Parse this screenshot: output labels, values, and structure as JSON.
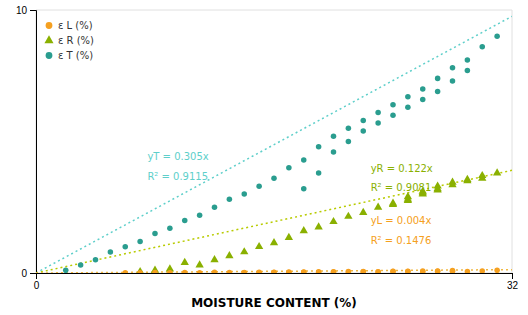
{
  "chart_data": {
    "type": "scatter",
    "xlabel": "MOISTURE CONTENT (%)",
    "xlim": [
      0,
      32
    ],
    "ylim": [
      0,
      10
    ],
    "xticks": [
      0,
      32
    ],
    "yticks": [
      0,
      10
    ],
    "grid": true,
    "legend": "upper left",
    "series": [
      {
        "name": "ε L (%)",
        "type": "scatter",
        "color": "#f5a020",
        "marker": "circle",
        "x": [
          6,
          7,
          8,
          9,
          10,
          11,
          12,
          13,
          14,
          15,
          16,
          17,
          18,
          19,
          20,
          21,
          22,
          23,
          24,
          25,
          26,
          27,
          28,
          29,
          30,
          31,
          14,
          15,
          16,
          17,
          18,
          19,
          20,
          21,
          22,
          23,
          24,
          25,
          26,
          27,
          28
        ],
        "values": [
          0.01,
          0.01,
          0.02,
          0.01,
          0.02,
          0.01,
          0.03,
          0.02,
          0.01,
          0.03,
          0.02,
          0.04,
          0.03,
          0.05,
          0.04,
          0.06,
          0.05,
          0.04,
          0.06,
          0.07,
          0.05,
          0.08,
          0.07,
          0.06,
          0.08,
          0.1,
          0.02,
          0.01,
          0.03,
          0.02,
          0.04,
          0.03,
          0.05,
          0.04,
          0.06,
          0.05,
          0.07,
          0.06,
          0.08,
          0.07,
          0.09
        ]
      },
      {
        "name": "ε R (%)",
        "type": "scatter",
        "color": "#8ab000",
        "marker": "triangle",
        "x": [
          7,
          8,
          9,
          10,
          11,
          12,
          13,
          14,
          15,
          16,
          17,
          18,
          19,
          20,
          21,
          22,
          23,
          24,
          25,
          26,
          27,
          28,
          29,
          30,
          31,
          24,
          25,
          26,
          27,
          28,
          29,
          30,
          25,
          26,
          27
        ],
        "values": [
          0.05,
          0.1,
          0.15,
          0.4,
          0.3,
          0.5,
          0.65,
          0.8,
          1.0,
          1.15,
          1.35,
          1.6,
          1.75,
          1.95,
          2.15,
          2.3,
          2.5,
          2.65,
          2.8,
          3.0,
          3.15,
          3.35,
          3.5,
          3.6,
          3.8,
          2.6,
          2.75,
          3.1,
          3.2,
          3.45,
          3.55,
          3.7,
          2.9,
          3.05,
          3.3
        ]
      },
      {
        "name": "ε T (%)",
        "type": "scatter",
        "color": "#2a9d8f",
        "marker": "circle",
        "x": [
          2,
          3,
          4,
          5,
          6,
          7,
          8,
          9,
          10,
          11,
          12,
          13,
          14,
          15,
          16,
          17,
          18,
          19,
          20,
          21,
          22,
          23,
          24,
          25,
          26,
          27,
          28,
          29,
          30,
          31,
          18,
          19,
          20,
          21,
          22,
          23,
          24,
          25,
          26,
          27,
          28,
          29
        ],
        "values": [
          0.1,
          0.3,
          0.5,
          0.8,
          1.0,
          1.2,
          1.5,
          1.7,
          2.0,
          2.2,
          2.5,
          2.8,
          3.0,
          3.3,
          3.6,
          4.0,
          4.3,
          4.8,
          5.2,
          5.5,
          5.8,
          6.1,
          6.4,
          6.7,
          7.0,
          7.4,
          7.8,
          8.1,
          8.6,
          9.0,
          3.2,
          3.8,
          4.6,
          5.0,
          5.4,
          5.7,
          6.0,
          6.3,
          6.6,
          6.9,
          7.3,
          7.7
        ]
      },
      {
        "type": "line",
        "color": "#5ecfca",
        "line_style": "dotted",
        "x": [
          0,
          32
        ],
        "values": [
          0,
          9.76
        ]
      },
      {
        "type": "line",
        "color": "#b8cb00",
        "line_style": "dotted",
        "x": [
          0,
          32
        ],
        "values": [
          0,
          3.904
        ]
      },
      {
        "type": "line",
        "color": "#f0b840",
        "line_style": "dotted",
        "x": [
          0,
          32
        ],
        "values": [
          0,
          0.128
        ]
      }
    ],
    "annotations": [
      {
        "text": "yT = 0.305x",
        "color": "#5ecfca"
      },
      {
        "text": "R² = 0.9115",
        "color": "#5ecfca"
      },
      {
        "text": "yR = 0.122x",
        "color": "#8ab000"
      },
      {
        "text": "R² = 0.9081",
        "color": "#8ab000"
      },
      {
        "text": "yL = 0.004x",
        "color": "#f5a020"
      },
      {
        "text": "R² = 0.1476",
        "color": "#f5a020"
      }
    ]
  }
}
